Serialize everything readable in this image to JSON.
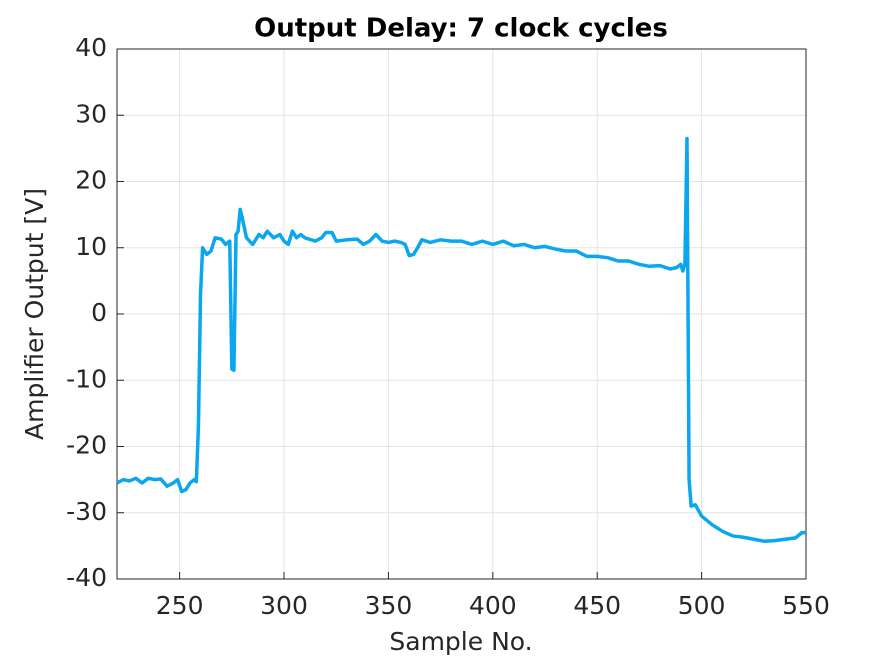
{
  "chart_data": {
    "type": "line",
    "title": "Output Delay: 7 clock cycles",
    "x_label": "Sample No.",
    "y_label": "Amplifier Output [V]",
    "color": "#0aa6ee",
    "grid": true,
    "xlim": [
      220,
      550
    ],
    "xticks": [
      250,
      300,
      350,
      400,
      450,
      500,
      550
    ],
    "ylim": [
      -40,
      40
    ],
    "yticks": [
      -40,
      -30,
      -20,
      -10,
      0,
      10,
      20,
      30,
      40
    ],
    "x": [
      220,
      223,
      226,
      229,
      232,
      235,
      238,
      241,
      244,
      247,
      249,
      251,
      253,
      255,
      257,
      258,
      259,
      260,
      261,
      263,
      265,
      267,
      270,
      272,
      274,
      275,
      276,
      277,
      278,
      279,
      280,
      282,
      285,
      288,
      290,
      292,
      295,
      298,
      300,
      302,
      304,
      306,
      308,
      310,
      312,
      315,
      318,
      320,
      323,
      325,
      330,
      335,
      338,
      341,
      344,
      347,
      350,
      353,
      356,
      358,
      360,
      362,
      364,
      366,
      370,
      375,
      380,
      385,
      390,
      395,
      400,
      405,
      410,
      415,
      420,
      425,
      430,
      435,
      440,
      445,
      450,
      455,
      460,
      465,
      470,
      475,
      480,
      485,
      488,
      490,
      491,
      492,
      493,
      494,
      495,
      497,
      500,
      505,
      510,
      515,
      520,
      525,
      530,
      535,
      540,
      545,
      548,
      550
    ],
    "values": [
      -25.5,
      -25,
      -25.2,
      -24.8,
      -25.5,
      -24.8,
      -25,
      -24.9,
      -26,
      -25.5,
      -25,
      -26.8,
      -26.5,
      -25.5,
      -25,
      -25.3,
      -17,
      3,
      10,
      9,
      9.5,
      11.5,
      11.3,
      10.5,
      11,
      -8.3,
      -8.5,
      12,
      12.5,
      15.8,
      14.5,
      11.5,
      10.5,
      12,
      11.5,
      12.5,
      11.5,
      12,
      11,
      10.5,
      12.5,
      11.5,
      12,
      11.5,
      11.3,
      11,
      11.5,
      12.3,
      12.3,
      11,
      11.2,
      11.3,
      10.5,
      11,
      12,
      11,
      10.8,
      11,
      10.8,
      10.5,
      8.8,
      9,
      10,
      11.2,
      10.8,
      11.2,
      11,
      11,
      10.5,
      11,
      10.5,
      11,
      10.3,
      10.5,
      10,
      10.2,
      9.8,
      9.5,
      9.5,
      8.7,
      8.7,
      8.5,
      8,
      8,
      7.5,
      7.2,
      7.3,
      6.8,
      7,
      7.5,
      6.5,
      7.5,
      26.5,
      -25,
      -29,
      -28.8,
      -30.5,
      -31.8,
      -32.8,
      -33.5,
      -33.7,
      -34,
      -34.3,
      -34.2,
      -34,
      -33.8,
      -33,
      -33
    ]
  }
}
